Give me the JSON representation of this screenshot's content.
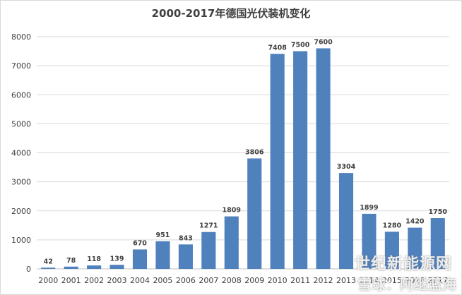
{
  "chart_data": {
    "type": "bar",
    "title": "2000-2017年德国光伏装机变化",
    "categories": [
      "2000",
      "2001",
      "2002",
      "2003",
      "2004",
      "2005",
      "2006",
      "2007",
      "2008",
      "2009",
      "2010",
      "2011",
      "2012",
      "2013",
      "2014",
      "2015",
      "2016",
      "2017"
    ],
    "series": [
      {
        "values": [
          42,
          78,
          118,
          139,
          670,
          951,
          843,
          1271,
          1809,
          3806,
          7408,
          7500,
          7600,
          3304,
          1899,
          1280,
          1420,
          1750
        ]
      }
    ],
    "yticks": [
      "0",
      "1000",
      "2000",
      "3000",
      "4000",
      "5000",
      "6000",
      "7000",
      "8000"
    ],
    "ylim": [
      0,
      8000
    ],
    "grid": true,
    "bar_color": "#4f81bd",
    "gridline_color": "#d9d9d9"
  },
  "watermark": {
    "line1": "世纪新能源网",
    "line2": "雪球：阿继蓝海",
    "line3": "雪球：阿继蓝海"
  }
}
